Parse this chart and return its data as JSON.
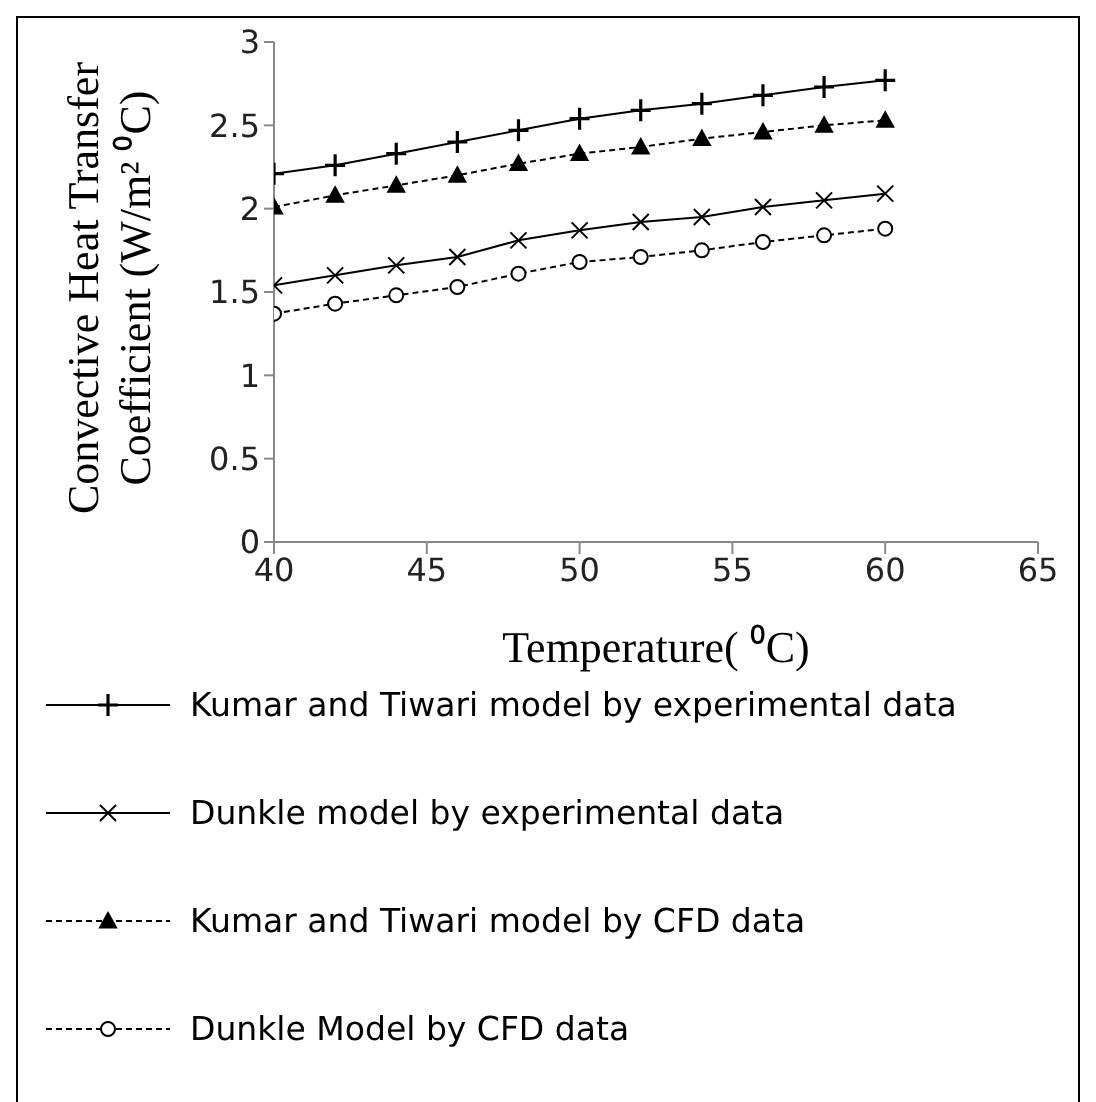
{
  "chart_data": {
    "type": "line",
    "xlabel": "Temperature( ⁰C)",
    "ylabel": "Convective Heat Transfer Coefficient (W/m² ⁰C)",
    "x": [
      40,
      42,
      44,
      46,
      48,
      50,
      52,
      54,
      56,
      58,
      60
    ],
    "series": [
      {
        "name": "Kumar and Tiwari model by experimental data",
        "color": "#000000",
        "marker": "plus",
        "line_style": "solid",
        "values": [
          2.21,
          2.26,
          2.33,
          2.4,
          2.47,
          2.54,
          2.59,
          2.63,
          2.68,
          2.73,
          2.77
        ]
      },
      {
        "name": "Dunkle model by experimental data",
        "color": "#000000",
        "marker": "cross",
        "line_style": "solid",
        "values": [
          1.54,
          1.6,
          1.66,
          1.71,
          1.81,
          1.87,
          1.92,
          1.95,
          2.01,
          2.05,
          2.09
        ]
      },
      {
        "name": "Kumar and Tiwari model by CFD data",
        "color": "#000000",
        "marker": "triangle",
        "line_style": "dashed",
        "values": [
          2.01,
          2.08,
          2.14,
          2.2,
          2.27,
          2.33,
          2.37,
          2.42,
          2.46,
          2.5,
          2.53
        ]
      },
      {
        "name": "Dunkle Model by CFD data",
        "color": "#000000",
        "marker": "circle",
        "line_style": "dashed",
        "values": [
          1.37,
          1.43,
          1.48,
          1.53,
          1.61,
          1.68,
          1.71,
          1.75,
          1.8,
          1.84,
          1.88
        ]
      }
    ],
    "xlim": [
      40,
      65
    ],
    "xticks": [
      40,
      45,
      50,
      55,
      60,
      65
    ],
    "ylim": [
      0,
      3
    ],
    "yticks": [
      0,
      0.5,
      1,
      1.5,
      2,
      2.5,
      3
    ],
    "grid": false,
    "legend": "bottom"
  }
}
